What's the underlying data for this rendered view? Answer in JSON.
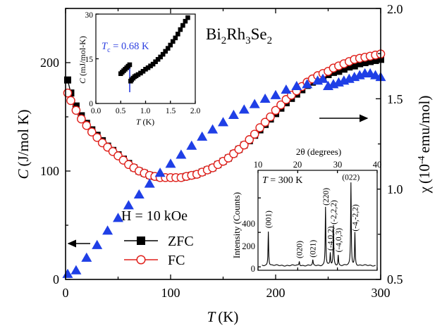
{
  "colors": {
    "zfc": "#000000",
    "fc": "#e0201b",
    "chi": "#1f3fe6",
    "tc_line": "#2c3fe0"
  },
  "chart_data": [
    {
      "type": "scatter",
      "compound": "Bi2Rh3Se2",
      "xlabel": {
        "main": "T",
        "unit": "(K)"
      },
      "ylabel_left": {
        "main": "C",
        "unit": "(J/mol K)"
      },
      "ylabel_right": {
        "main": "χ",
        "unit": "emu/mol",
        "exp": "-4"
      },
      "xlim": [
        0,
        300
      ],
      "ylim_left": [
        0,
        250
      ],
      "ylim_right": [
        0.5,
        2.0
      ],
      "xticks": [
        "0",
        "100",
        "200",
        "300"
      ],
      "yticks_left": [
        "0",
        "100",
        "200"
      ],
      "yticks_right": [
        "0.5",
        "1.0",
        "1.5",
        "2.0"
      ],
      "legend": {
        "title": "H = 10 kOe",
        "entries": [
          "ZFC",
          "FC"
        ],
        "placement": "bottom-left"
      },
      "series": [
        {
          "name": "ZFC",
          "axis": "left",
          "marker": "square",
          "x": [
            2,
            5,
            10,
            15,
            20,
            25,
            30,
            35,
            40,
            45,
            50,
            55,
            60,
            65,
            70,
            75,
            80,
            85,
            90,
            95,
            100,
            105,
            110,
            115,
            120,
            125,
            130,
            135,
            140,
            145,
            150,
            155,
            160,
            165,
            170,
            175,
            180,
            185,
            190,
            195,
            200,
            205,
            210,
            215,
            220,
            225,
            230,
            235,
            240,
            245,
            250,
            255,
            260,
            265,
            270,
            275,
            280,
            285,
            290,
            295,
            300
          ],
          "y": [
            184,
            172,
            160,
            151,
            144,
            138,
            133,
            128,
            123,
            119,
            115,
            111,
            107,
            103,
            100,
            98,
            96,
            95,
            94,
            94,
            94,
            94,
            94,
            95,
            96,
            97,
            99,
            101,
            103,
            106,
            109,
            112,
            116,
            120,
            124,
            128,
            133,
            138,
            143,
            148,
            153,
            158,
            163,
            167,
            171,
            175,
            179,
            182,
            185,
            187,
            189,
            191,
            192,
            194,
            196,
            197,
            199,
            200,
            201,
            202,
            203
          ]
        },
        {
          "name": "FC",
          "axis": "left",
          "marker": "open-circle",
          "x": [
            2,
            5,
            10,
            15,
            20,
            25,
            30,
            35,
            40,
            45,
            50,
            55,
            60,
            65,
            70,
            75,
            80,
            85,
            90,
            95,
            100,
            105,
            110,
            115,
            120,
            125,
            130,
            135,
            140,
            145,
            150,
            155,
            160,
            165,
            170,
            175,
            180,
            185,
            190,
            195,
            200,
            205,
            210,
            215,
            220,
            225,
            230,
            235,
            240,
            245,
            250,
            255,
            260,
            265,
            270,
            275,
            280,
            285,
            290,
            295,
            300
          ],
          "y": [
            172,
            165,
            156,
            148,
            142,
            136,
            131,
            126,
            122,
            118,
            114,
            110,
            106,
            103,
            100,
            98,
            96,
            95,
            94,
            94,
            94,
            94,
            94,
            95,
            96,
            97,
            99,
            101,
            103,
            106,
            109,
            112,
            116,
            120,
            124,
            129,
            134,
            140,
            145,
            150,
            156,
            161,
            166,
            170,
            174,
            178,
            182,
            185,
            188,
            190,
            192,
            195,
            197,
            199,
            201,
            203,
            204,
            205,
            206,
            207,
            208
          ]
        },
        {
          "name": "χ",
          "axis": "right",
          "marker": "triangle",
          "x": [
            2,
            10,
            20,
            30,
            40,
            50,
            60,
            70,
            80,
            90,
            100,
            110,
            120,
            130,
            140,
            150,
            160,
            170,
            180,
            190,
            200,
            210,
            220,
            230,
            240,
            245,
            250,
            255,
            260,
            265,
            270,
            275,
            280,
            285,
            290,
            295,
            300
          ],
          "y": [
            0.53,
            0.55,
            0.62,
            0.69,
            0.77,
            0.84,
            0.91,
            0.97,
            1.03,
            1.09,
            1.14,
            1.19,
            1.24,
            1.29,
            1.33,
            1.37,
            1.41,
            1.44,
            1.47,
            1.5,
            1.52,
            1.55,
            1.57,
            1.58,
            1.6,
            1.61,
            1.57,
            1.58,
            1.59,
            1.6,
            1.61,
            1.62,
            1.63,
            1.64,
            1.64,
            1.63,
            1.62
          ]
        }
      ],
      "arrows": [
        {
          "points_to": "left axis",
          "near_x": 15,
          "near_y_left": 33
        },
        {
          "points_to": "right axis",
          "near_x": 260,
          "near_y_left": 148
        }
      ]
    },
    {
      "type": "scatter",
      "name": "inset-low-temperature",
      "xlabel": {
        "main": "T",
        "unit": "(K)"
      },
      "ylabel": {
        "main": "C",
        "unit": "(mJ/mol-K)"
      },
      "xlim": [
        0,
        2.0
      ],
      "ylim": [
        0,
        30
      ],
      "xticks": [
        "0.0",
        "0.5",
        "1.0",
        "1.5",
        "2.0"
      ],
      "yticks": [
        "0",
        "15",
        "30"
      ],
      "annotation": {
        "prefix": "T",
        "sub": "c",
        "text": " = 0.68 K",
        "tc": 0.68
      },
      "series": [
        {
          "name": "C",
          "marker": "square",
          "x": [
            0.5,
            0.53,
            0.56,
            0.59,
            0.62,
            0.65,
            0.68,
            0.7,
            0.72,
            0.75,
            0.78,
            0.81,
            0.85,
            0.9,
            0.95,
            1.0,
            1.05,
            1.1,
            1.15,
            1.2,
            1.25,
            1.3,
            1.35,
            1.4,
            1.45,
            1.5,
            1.55,
            1.6,
            1.65,
            1.7,
            1.75,
            1.8,
            1.85
          ],
          "y": [
            10,
            10.5,
            11,
            11.5,
            12,
            12.5,
            13,
            7.5,
            8,
            8.5,
            9,
            9.3,
            9.7,
            10.2,
            10.8,
            11.5,
            12,
            12.6,
            13.2,
            14,
            14.8,
            15.6,
            16.5,
            17.5,
            18.5,
            19.6,
            20.8,
            22,
            23.3,
            24.8,
            26.2,
            27.6,
            28.8
          ]
        }
      ]
    },
    {
      "type": "line",
      "name": "inset-xrd",
      "xlabel": "2θ (degrees)",
      "ylabel": "Intensity (Counts)",
      "annotation": {
        "prefix": "T",
        "text": " = 300 K"
      },
      "xlim": [
        10,
        40
      ],
      "ylim": [
        -20,
        560
      ],
      "xticks": [
        "10",
        "20",
        "30",
        "40"
      ],
      "yticks": [
        "0",
        "200",
        "400"
      ],
      "peaks": [
        {
          "label": "(001)",
          "x": 12.6,
          "y": 200
        },
        {
          "label": "(020)",
          "x": 20.4,
          "y": 25
        },
        {
          "label": "(021)",
          "x": 23.8,
          "y": 30
        },
        {
          "label": "(220)",
          "x": 27.0,
          "y": 340
        },
        {
          "label": "(-4,0,2)",
          "x": 28.2,
          "y": 70
        },
        {
          "label": "(-2,2,2)",
          "x": 29.0,
          "y": 230
        },
        {
          "label": "(-4,0,3)",
          "x": 30.2,
          "y": 60
        },
        {
          "label": "(022)",
          "x": 33.4,
          "y": 480
        },
        {
          "label": "(-4,-2,2)",
          "x": 34.4,
          "y": 190
        }
      ]
    }
  ]
}
